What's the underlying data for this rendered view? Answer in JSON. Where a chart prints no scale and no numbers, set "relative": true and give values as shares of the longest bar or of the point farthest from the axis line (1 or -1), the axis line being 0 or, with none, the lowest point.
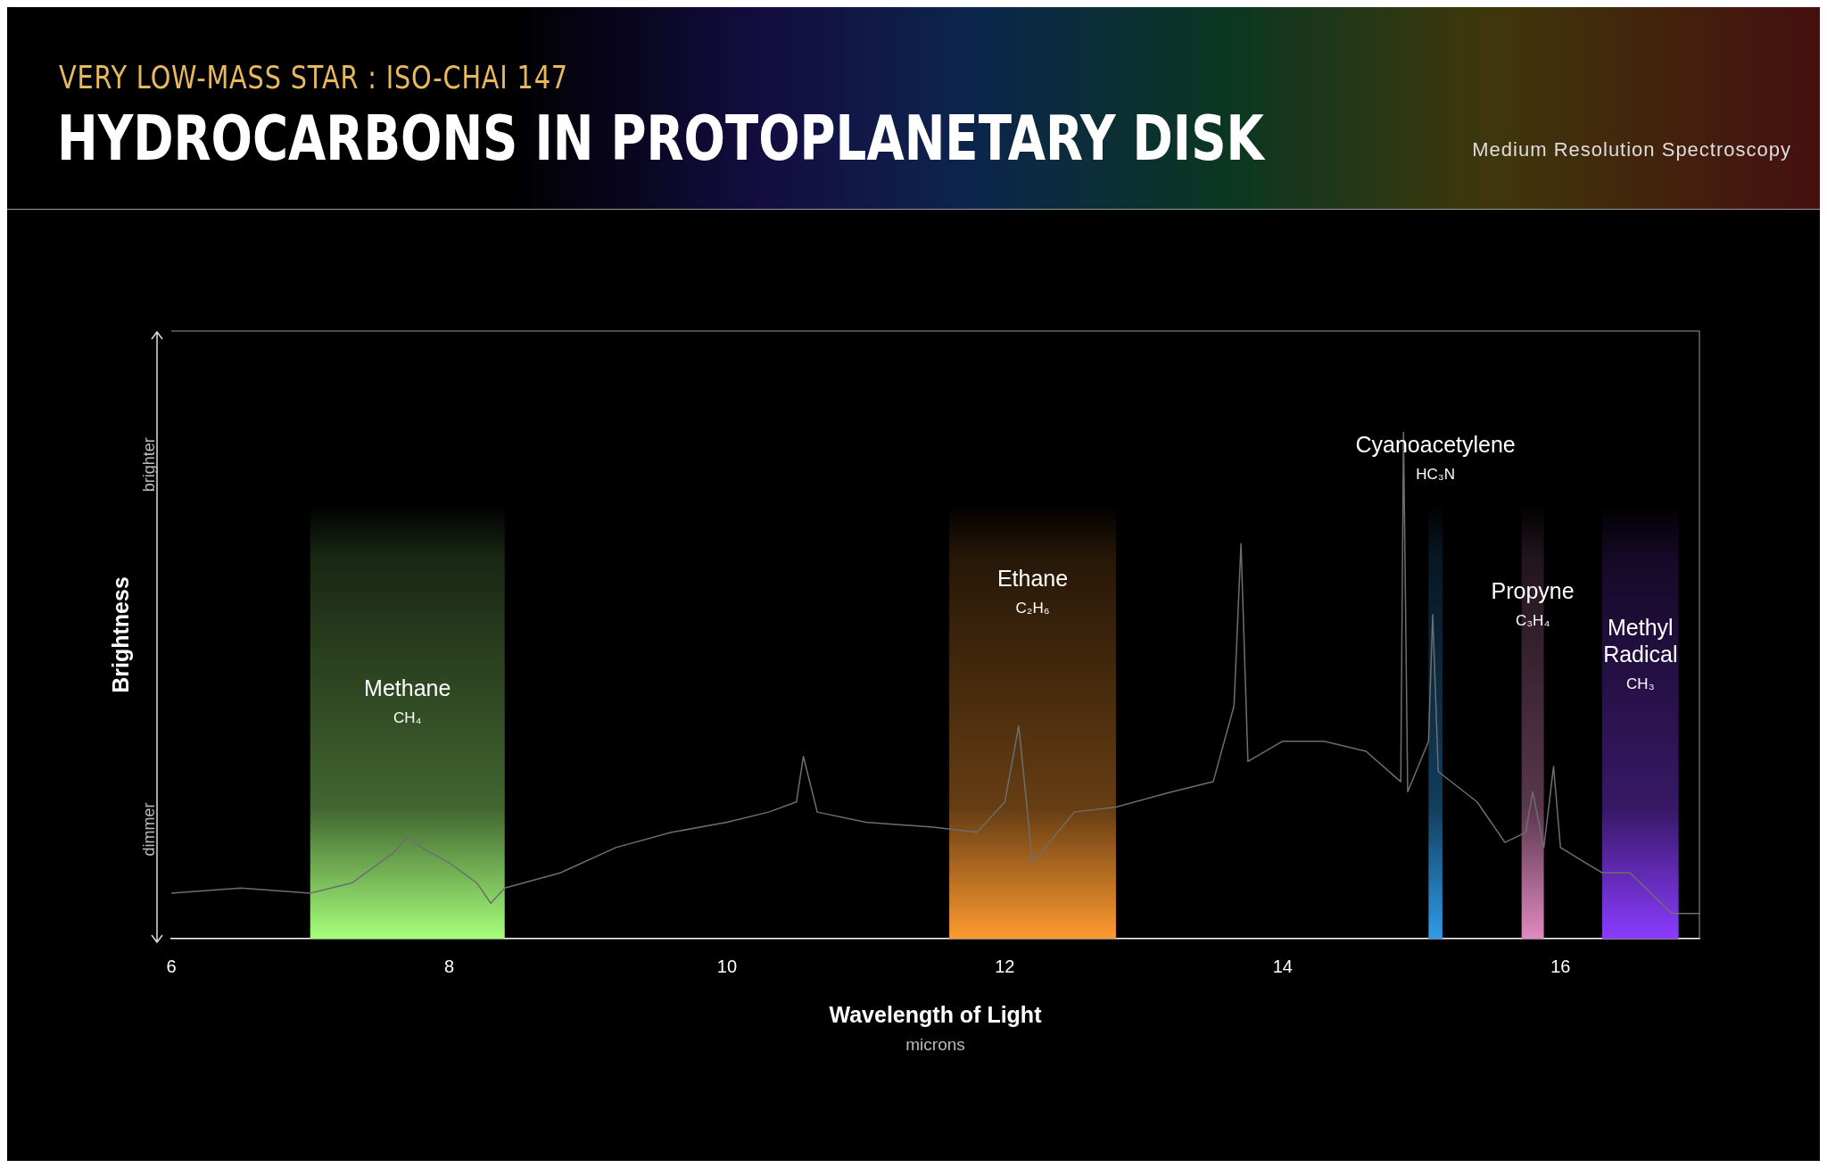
{
  "chart_data": {
    "type": "line",
    "title": "HYDROCARBONS IN PROTOPLANETARY DISK",
    "subtitle": "VERY LOW-MASS STAR : ISO-CHAI 147",
    "xlabel": "Wavelength of Light",
    "ylabel": "Brightness",
    "annotations": [
      "brighter",
      "dimmer",
      "microns",
      "Medium Resolution Spectroscopy"
    ],
    "relative": true,
    "tick_labels": "x",
    "xlim": [
      6,
      17
    ],
    "xticks": [
      6,
      8,
      10,
      12,
      14,
      16
    ],
    "x": [
      6.0,
      6.5,
      7.0,
      7.3,
      7.6,
      7.7,
      7.8,
      8.0,
      8.2,
      8.3,
      8.4,
      8.8,
      9.2,
      9.6,
      10.0,
      10.3,
      10.5,
      10.55,
      10.65,
      11.0,
      11.5,
      11.8,
      12.0,
      12.1,
      12.2,
      12.5,
      12.8,
      13.2,
      13.5,
      13.65,
      13.7,
      13.75,
      14.0,
      14.3,
      14.6,
      14.85,
      14.87,
      14.9,
      15.05,
      15.08,
      15.12,
      15.4,
      15.6,
      15.75,
      15.8,
      15.88,
      15.95,
      16.0,
      16.3,
      16.5,
      16.8,
      17.0
    ],
    "series": [
      {
        "color": "#6e6e6e",
        "values": [
          0.09,
          0.1,
          0.09,
          0.11,
          0.17,
          0.2,
          0.18,
          0.15,
          0.11,
          0.07,
          0.1,
          0.13,
          0.18,
          0.21,
          0.23,
          0.25,
          0.27,
          0.36,
          0.25,
          0.23,
          0.22,
          0.21,
          0.27,
          0.42,
          0.15,
          0.25,
          0.26,
          0.29,
          0.31,
          0.46,
          0.78,
          0.35,
          0.39,
          0.39,
          0.37,
          0.31,
          1.0,
          0.29,
          0.39,
          0.64,
          0.33,
          0.27,
          0.19,
          0.21,
          0.29,
          0.18,
          0.34,
          0.18,
          0.13,
          0.13,
          0.05,
          0.05
        ]
      }
    ],
    "bands": [
      {
        "axis": "x",
        "from": 7.0,
        "to": 8.4,
        "label": "Methane CH₄",
        "color": "#a6ff7a"
      },
      {
        "axis": "x",
        "from": 11.6,
        "to": 12.8,
        "label": "Ethane C₂H₆",
        "color": "#ff9a30"
      },
      {
        "axis": "x",
        "from": 15.05,
        "to": 15.15,
        "label": "Cyanoacetylene HC₃N",
        "color": "#2f9be8"
      },
      {
        "axis": "x",
        "from": 15.72,
        "to": 15.88,
        "label": "Propyne C₃H₄",
        "color": "#e08ac0"
      },
      {
        "axis": "x",
        "from": 16.3,
        "to": 16.85,
        "label": "Methyl Radical CH₃",
        "color": "#8a3cff"
      }
    ]
  }
}
